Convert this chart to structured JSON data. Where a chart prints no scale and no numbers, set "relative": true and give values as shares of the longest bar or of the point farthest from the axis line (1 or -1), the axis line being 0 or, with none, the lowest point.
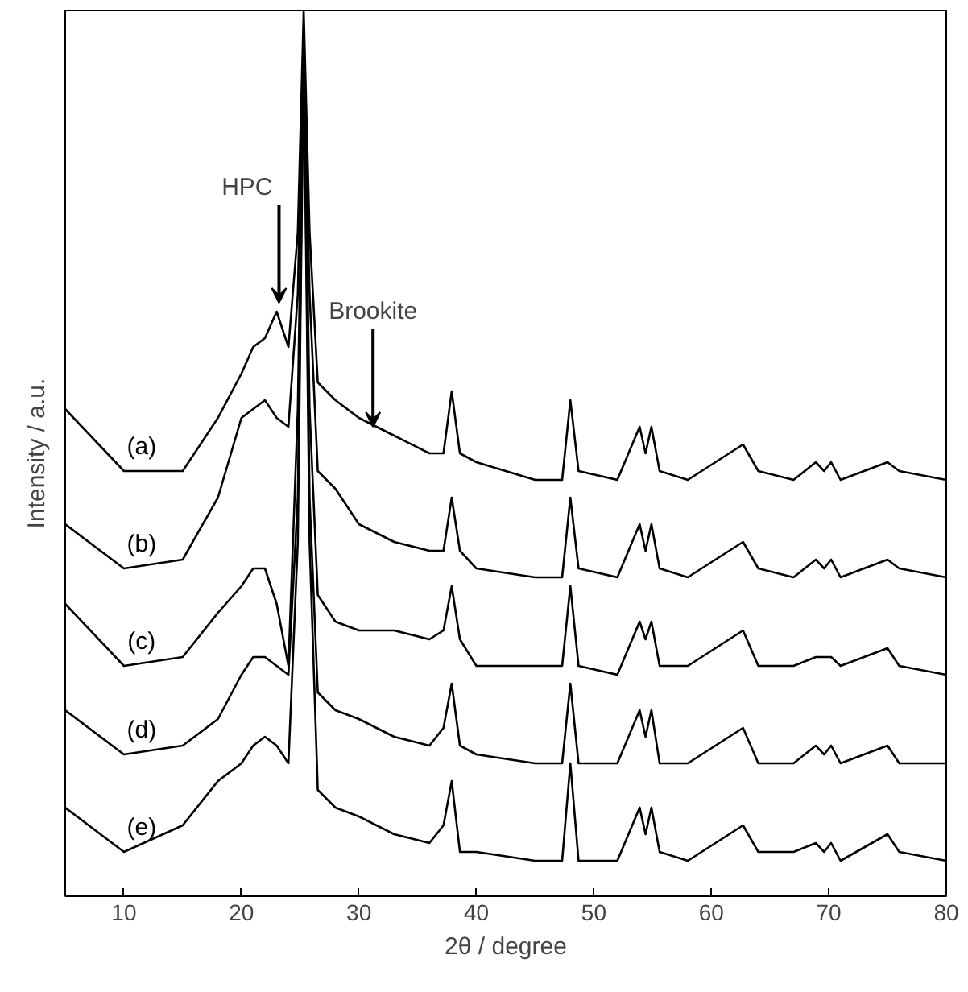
{
  "chart_data": {
    "type": "line",
    "relative": true,
    "xlabel": "2θ / degree",
    "ylabel": "Intensity / a.u.",
    "xlim": [
      5,
      80
    ],
    "xticks": [
      10,
      20,
      30,
      40,
      50,
      60,
      70,
      80
    ],
    "grid": false,
    "marker": "none",
    "line_style": "solid",
    "x": [
      5,
      10,
      15,
      18,
      20,
      21,
      22,
      23,
      24,
      24.8,
      25.3,
      25.8,
      26.5,
      28,
      30,
      33,
      36,
      37.2,
      37.9,
      38.6,
      40,
      45,
      47.3,
      48,
      48.7,
      52,
      53.9,
      54.4,
      54.9,
      55.6,
      58,
      62.7,
      64,
      67,
      68.9,
      69.6,
      70.2,
      71,
      75,
      76,
      80
    ],
    "series": [
      {
        "name": "(a)",
        "color": "#000000",
        "values": [
          0.55,
          0.48,
          0.48,
          0.54,
          0.59,
          0.62,
          0.63,
          0.66,
          0.62,
          0.75,
          1.0,
          0.75,
          0.58,
          0.56,
          0.54,
          0.52,
          0.5,
          0.5,
          0.57,
          0.5,
          0.49,
          0.47,
          0.47,
          0.56,
          0.48,
          0.47,
          0.53,
          0.5,
          0.53,
          0.48,
          0.47,
          0.51,
          0.48,
          0.47,
          0.49,
          0.48,
          0.49,
          0.47,
          0.49,
          0.48,
          0.47
        ]
      },
      {
        "name": "(b)",
        "color": "#000000",
        "values": [
          0.42,
          0.37,
          0.38,
          0.45,
          0.54,
          0.55,
          0.56,
          0.54,
          0.53,
          0.68,
          0.98,
          0.68,
          0.48,
          0.46,
          0.42,
          0.4,
          0.39,
          0.39,
          0.45,
          0.39,
          0.37,
          0.36,
          0.36,
          0.45,
          0.37,
          0.36,
          0.42,
          0.39,
          0.42,
          0.37,
          0.36,
          0.4,
          0.37,
          0.36,
          0.38,
          0.37,
          0.38,
          0.36,
          0.38,
          0.37,
          0.36
        ]
      },
      {
        "name": "(c)",
        "color": "#000000",
        "values": [
          0.33,
          0.26,
          0.27,
          0.32,
          0.35,
          0.37,
          0.37,
          0.33,
          0.26,
          0.55,
          0.97,
          0.55,
          0.34,
          0.31,
          0.3,
          0.3,
          0.29,
          0.3,
          0.35,
          0.29,
          0.26,
          0.26,
          0.26,
          0.35,
          0.26,
          0.25,
          0.31,
          0.29,
          0.31,
          0.26,
          0.26,
          0.3,
          0.26,
          0.26,
          0.27,
          0.27,
          0.27,
          0.26,
          0.28,
          0.26,
          0.25
        ]
      },
      {
        "name": "(d)",
        "color": "#000000",
        "values": [
          0.21,
          0.16,
          0.17,
          0.2,
          0.25,
          0.27,
          0.27,
          0.26,
          0.25,
          0.45,
          0.96,
          0.45,
          0.23,
          0.21,
          0.2,
          0.18,
          0.17,
          0.19,
          0.24,
          0.17,
          0.16,
          0.15,
          0.15,
          0.24,
          0.15,
          0.15,
          0.21,
          0.18,
          0.21,
          0.15,
          0.15,
          0.19,
          0.15,
          0.15,
          0.17,
          0.16,
          0.17,
          0.15,
          0.17,
          0.15,
          0.15
        ]
      },
      {
        "name": "(e)",
        "color": "#000000",
        "values": [
          0.1,
          0.05,
          0.08,
          0.13,
          0.15,
          0.17,
          0.18,
          0.17,
          0.15,
          0.4,
          0.95,
          0.4,
          0.12,
          0.1,
          0.09,
          0.07,
          0.06,
          0.08,
          0.13,
          0.05,
          0.05,
          0.04,
          0.04,
          0.15,
          0.04,
          0.04,
          0.1,
          0.07,
          0.1,
          0.05,
          0.04,
          0.08,
          0.05,
          0.05,
          0.06,
          0.05,
          0.06,
          0.04,
          0.07,
          0.05,
          0.04
        ]
      }
    ],
    "annotations": [
      {
        "text": "HPC",
        "x": 23.2,
        "y": 0.67
      },
      {
        "text": "Brookite",
        "x": 31.2,
        "y": 0.53
      }
    ]
  }
}
